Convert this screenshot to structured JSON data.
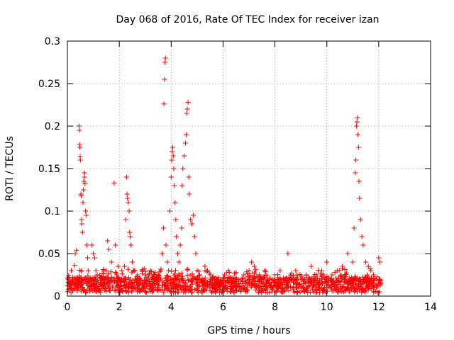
{
  "chart_data": {
    "type": "scatter",
    "title": "Day 068 of 2016, Rate Of TEC Index for receiver izan",
    "xlabel": "GPS time / hours",
    "ylabel": "ROTI / TECUs",
    "xlim": [
      0,
      14
    ],
    "ylim": [
      0,
      0.3
    ],
    "xticks": [
      0,
      2,
      4,
      6,
      8,
      10,
      12,
      14
    ],
    "xtick_labels": [
      "0",
      "2",
      "4",
      "6",
      "8",
      "10",
      "12",
      "14"
    ],
    "yticks": [
      0,
      0.05,
      0.1,
      0.15,
      0.2,
      0.25,
      0.3
    ],
    "ytick_labels": [
      "0",
      "0.05",
      "0.1",
      "0.15",
      "0.2",
      "0.25",
      "0.3"
    ],
    "grid": true,
    "marker": "+",
    "color": "#ff0000",
    "series": [
      {
        "name": "ROTI",
        "points": [
          [
            0.05,
            0.008
          ],
          [
            0.1,
            0.015
          ],
          [
            0.15,
            0.03
          ],
          [
            0.2,
            0.022
          ],
          [
            0.25,
            0.012
          ],
          [
            0.28,
            0.036
          ],
          [
            0.3,
            0.05
          ],
          [
            0.35,
            0.054
          ],
          [
            0.38,
            0.02
          ],
          [
            0.4,
            0.01
          ],
          [
            0.45,
            0.2
          ],
          [
            0.46,
            0.195
          ],
          [
            0.47,
            0.178
          ],
          [
            0.48,
            0.175
          ],
          [
            0.49,
            0.164
          ],
          [
            0.5,
            0.16
          ],
          [
            0.52,
            0.12
          ],
          [
            0.53,
            0.118
          ],
          [
            0.55,
            0.09
          ],
          [
            0.56,
            0.085
          ],
          [
            0.58,
            0.075
          ],
          [
            0.6,
            0.11
          ],
          [
            0.62,
            0.125
          ],
          [
            0.63,
            0.135
          ],
          [
            0.65,
            0.145
          ],
          [
            0.66,
            0.14
          ],
          [
            0.68,
            0.132
          ],
          [
            0.7,
            0.1
          ],
          [
            0.72,
            0.095
          ],
          [
            0.75,
            0.06
          ],
          [
            0.78,
            0.045
          ],
          [
            0.8,
            0.03
          ],
          [
            0.85,
            0.02
          ],
          [
            0.9,
            0.012
          ],
          [
            0.95,
            0.06
          ],
          [
            1.0,
            0.05
          ],
          [
            1.05,
            0.045
          ],
          [
            1.1,
            0.03
          ],
          [
            1.15,
            0.025
          ],
          [
            1.2,
            0.015
          ],
          [
            1.3,
            0.02
          ],
          [
            1.4,
            0.012
          ],
          [
            1.5,
            0.03
          ],
          [
            1.55,
            0.065
          ],
          [
            1.6,
            0.055
          ],
          [
            1.7,
            0.04
          ],
          [
            1.8,
            0.133
          ],
          [
            1.85,
            0.06
          ],
          [
            1.9,
            0.025
          ],
          [
            1.95,
            0.035
          ],
          [
            2.0,
            0.02
          ],
          [
            2.1,
            0.03
          ],
          [
            2.2,
            0.035
          ],
          [
            2.25,
            0.09
          ],
          [
            2.28,
            0.14
          ],
          [
            2.3,
            0.12
          ],
          [
            2.32,
            0.115
          ],
          [
            2.35,
            0.11
          ],
          [
            2.38,
            0.1
          ],
          [
            2.4,
            0.075
          ],
          [
            2.42,
            0.07
          ],
          [
            2.45,
            0.06
          ],
          [
            2.5,
            0.04
          ],
          [
            2.6,
            0.03
          ],
          [
            2.7,
            0.025
          ],
          [
            2.8,
            0.02
          ],
          [
            2.9,
            0.015
          ],
          [
            3.0,
            0.025
          ],
          [
            3.1,
            0.02
          ],
          [
            3.2,
            0.03
          ],
          [
            3.3,
            0.015
          ],
          [
            3.4,
            0.02
          ],
          [
            3.5,
            0.025
          ],
          [
            3.6,
            0.03
          ],
          [
            3.65,
            0.05
          ],
          [
            3.7,
            0.08
          ],
          [
            3.72,
            0.226
          ],
          [
            3.74,
            0.255
          ],
          [
            3.76,
            0.275
          ],
          [
            3.78,
            0.28
          ],
          [
            3.8,
            0.06
          ],
          [
            3.85,
            0.04
          ],
          [
            3.9,
            0.03
          ],
          [
            3.95,
            0.1
          ],
          [
            4.0,
            0.14
          ],
          [
            4.02,
            0.16
          ],
          [
            4.04,
            0.17
          ],
          [
            4.06,
            0.175
          ],
          [
            4.08,
            0.165
          ],
          [
            4.1,
            0.15
          ],
          [
            4.12,
            0.13
          ],
          [
            4.15,
            0.11
          ],
          [
            4.18,
            0.09
          ],
          [
            4.2,
            0.07
          ],
          [
            4.25,
            0.05
          ],
          [
            4.3,
            0.04
          ],
          [
            4.35,
            0.06
          ],
          [
            4.4,
            0.08
          ],
          [
            4.42,
            0.13
          ],
          [
            4.45,
            0.15
          ],
          [
            4.5,
            0.165
          ],
          [
            4.55,
            0.18
          ],
          [
            4.58,
            0.19
          ],
          [
            4.6,
            0.215
          ],
          [
            4.62,
            0.22
          ],
          [
            4.65,
            0.228
          ],
          [
            4.68,
            0.14
          ],
          [
            4.7,
            0.12
          ],
          [
            4.75,
            0.09
          ],
          [
            4.8,
            0.085
          ],
          [
            4.85,
            0.095
          ],
          [
            4.9,
            0.07
          ],
          [
            4.95,
            0.05
          ],
          [
            5.0,
            0.03
          ],
          [
            5.1,
            0.025
          ],
          [
            5.2,
            0.02
          ],
          [
            5.3,
            0.035
          ],
          [
            5.4,
            0.03
          ],
          [
            5.5,
            0.025
          ],
          [
            5.6,
            0.02
          ],
          [
            5.8,
            0.015
          ],
          [
            6.0,
            0.02
          ],
          [
            6.2,
            0.03
          ],
          [
            6.4,
            0.02
          ],
          [
            6.6,
            0.015
          ],
          [
            6.8,
            0.025
          ],
          [
            7.0,
            0.03
          ],
          [
            7.1,
            0.04
          ],
          [
            7.2,
            0.035
          ],
          [
            7.4,
            0.025
          ],
          [
            7.6,
            0.03
          ],
          [
            7.8,
            0.02
          ],
          [
            8.0,
            0.025
          ],
          [
            8.2,
            0.03
          ],
          [
            8.4,
            0.02
          ],
          [
            8.5,
            0.05
          ],
          [
            8.6,
            0.025
          ],
          [
            8.8,
            0.03
          ],
          [
            9.0,
            0.02
          ],
          [
            9.2,
            0.025
          ],
          [
            9.4,
            0.035
          ],
          [
            9.6,
            0.025
          ],
          [
            9.8,
            0.03
          ],
          [
            10.0,
            0.04
          ],
          [
            10.2,
            0.025
          ],
          [
            10.4,
            0.03
          ],
          [
            10.6,
            0.035
          ],
          [
            10.8,
            0.05
          ],
          [
            11.0,
            0.04
          ],
          [
            11.05,
            0.08
          ],
          [
            11.1,
            0.145
          ],
          [
            11.12,
            0.16
          ],
          [
            11.14,
            0.2
          ],
          [
            11.16,
            0.205
          ],
          [
            11.18,
            0.21
          ],
          [
            11.2,
            0.19
          ],
          [
            11.22,
            0.175
          ],
          [
            11.24,
            0.135
          ],
          [
            11.26,
            0.115
          ],
          [
            11.3,
            0.09
          ],
          [
            11.35,
            0.07
          ],
          [
            11.4,
            0.06
          ],
          [
            11.5,
            0.04
          ],
          [
            11.6,
            0.035
          ],
          [
            11.7,
            0.03
          ],
          [
            11.8,
            0.025
          ],
          [
            11.9,
            0.02
          ],
          [
            12.0,
            0.045
          ],
          [
            12.05,
            0.04
          ],
          [
            12.08,
            0.015
          ]
        ]
      }
    ]
  }
}
